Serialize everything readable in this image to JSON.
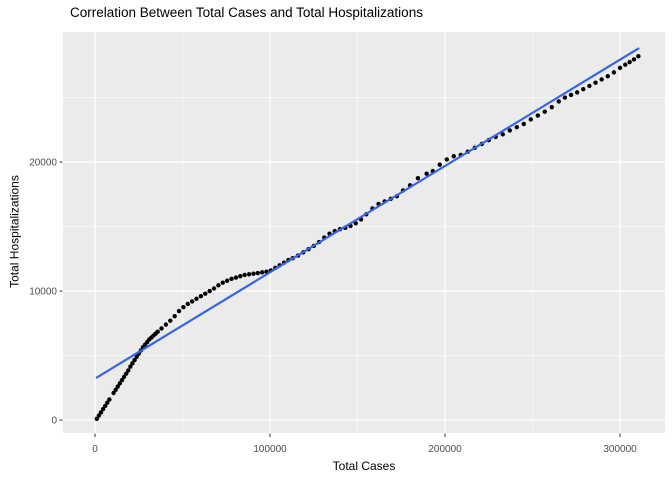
{
  "chart_data": {
    "type": "scatter",
    "title": "Correlation Between Total Cases and Total Hospitalizations",
    "xlabel": "Total Cases",
    "ylabel": "Total Hospitalizations",
    "xlim": [
      -18300,
      325700
    ],
    "ylim": [
      -1000,
      30080
    ],
    "x_ticks": [
      {
        "value": 0,
        "label": "0"
      },
      {
        "value": 100000,
        "label": "100000"
      },
      {
        "value": 200000,
        "label": "200000"
      },
      {
        "value": 300000,
        "label": "300000"
      }
    ],
    "y_ticks": [
      {
        "value": 0,
        "label": "0"
      },
      {
        "value": 10000,
        "label": "10000"
      },
      {
        "value": 20000,
        "label": "20000"
      }
    ],
    "x_minor_gridlines": [
      50000,
      150000,
      250000
    ],
    "y_minor_gridlines": [
      5000,
      15000,
      25000
    ],
    "grid": "on",
    "legend": "none",
    "panel_bg_color": "#EBEBEB",
    "major_grid_color": "#FFFFFF",
    "minor_grid_color": "#FFFFFF",
    "point_color": "#000000",
    "trend_line_color": "#3865E6",
    "tick_text_color": "#4D4D4D",
    "trend_line": {
      "x_start": 1000,
      "y_start": 3300,
      "x_end": 310500,
      "y_end": 28800
    },
    "points": [
      [
        1000,
        100
      ],
      [
        2200,
        350
      ],
      [
        3400,
        600
      ],
      [
        4600,
        850
      ],
      [
        5800,
        1100
      ],
      [
        7000,
        1350
      ],
      [
        8200,
        1600
      ],
      [
        10600,
        2100
      ],
      [
        11800,
        2350
      ],
      [
        13000,
        2600
      ],
      [
        14200,
        2850
      ],
      [
        15400,
        3100
      ],
      [
        16600,
        3350
      ],
      [
        17800,
        3600
      ],
      [
        19000,
        3850
      ],
      [
        20200,
        4150
      ],
      [
        21400,
        4400
      ],
      [
        22600,
        4650
      ],
      [
        23800,
        4900
      ],
      [
        25000,
        5150
      ],
      [
        26200,
        5400
      ],
      [
        27400,
        5650
      ],
      [
        28600,
        5850
      ],
      [
        29800,
        6050
      ],
      [
        31000,
        6250
      ],
      [
        32200,
        6400
      ],
      [
        33400,
        6550
      ],
      [
        34600,
        6700
      ],
      [
        35800,
        6850
      ],
      [
        38000,
        7100
      ],
      [
        40500,
        7400
      ],
      [
        43000,
        7700
      ],
      [
        45500,
        8050
      ],
      [
        48000,
        8450
      ],
      [
        50500,
        8750
      ],
      [
        53000,
        9000
      ],
      [
        55500,
        9200
      ],
      [
        58000,
        9400
      ],
      [
        60500,
        9600
      ],
      [
        63000,
        9800
      ],
      [
        65500,
        10000
      ],
      [
        68000,
        10200
      ],
      [
        70500,
        10450
      ],
      [
        73000,
        10650
      ],
      [
        75500,
        10800
      ],
      [
        78000,
        10950
      ],
      [
        80500,
        11050
      ],
      [
        83000,
        11150
      ],
      [
        85500,
        11250
      ],
      [
        88000,
        11300
      ],
      [
        90500,
        11350
      ],
      [
        93000,
        11400
      ],
      [
        95500,
        11450
      ],
      [
        98000,
        11500
      ],
      [
        100500,
        11600
      ],
      [
        103000,
        11800
      ],
      [
        105500,
        12000
      ],
      [
        108000,
        12200
      ],
      [
        110500,
        12400
      ],
      [
        113000,
        12550
      ],
      [
        116000,
        12750
      ],
      [
        119000,
        13000
      ],
      [
        122000,
        13250
      ],
      [
        125000,
        13500
      ],
      [
        128000,
        13800
      ],
      [
        131000,
        14150
      ],
      [
        134000,
        14450
      ],
      [
        137000,
        14650
      ],
      [
        140000,
        14800
      ],
      [
        143000,
        14900
      ],
      [
        146000,
        15050
      ],
      [
        149000,
        15250
      ],
      [
        152000,
        15550
      ],
      [
        155000,
        15950
      ],
      [
        158500,
        16400
      ],
      [
        162000,
        16750
      ],
      [
        165500,
        16950
      ],
      [
        169000,
        17150
      ],
      [
        172500,
        17350
      ],
      [
        176000,
        17800
      ],
      [
        180000,
        18200
      ],
      [
        184500,
        18750
      ],
      [
        189500,
        19100
      ],
      [
        193000,
        19300
      ],
      [
        197000,
        19800
      ],
      [
        201000,
        20200
      ],
      [
        205000,
        20450
      ],
      [
        209000,
        20550
      ],
      [
        213000,
        20800
      ],
      [
        217000,
        21100
      ],
      [
        221000,
        21400
      ],
      [
        225000,
        21700
      ],
      [
        229000,
        21950
      ],
      [
        233000,
        22150
      ],
      [
        237000,
        22450
      ],
      [
        241000,
        22700
      ],
      [
        245000,
        22950
      ],
      [
        249000,
        23300
      ],
      [
        253000,
        23600
      ],
      [
        257000,
        23900
      ],
      [
        261000,
        24250
      ],
      [
        265000,
        24700
      ],
      [
        268500,
        25000
      ],
      [
        272000,
        25200
      ],
      [
        275500,
        25400
      ],
      [
        279000,
        25650
      ],
      [
        282500,
        25900
      ],
      [
        286000,
        26150
      ],
      [
        289500,
        26400
      ],
      [
        293000,
        26650
      ],
      [
        296500,
        26950
      ],
      [
        300000,
        27300
      ],
      [
        303000,
        27550
      ],
      [
        305500,
        27750
      ],
      [
        308000,
        27950
      ],
      [
        310500,
        28200
      ]
    ]
  }
}
